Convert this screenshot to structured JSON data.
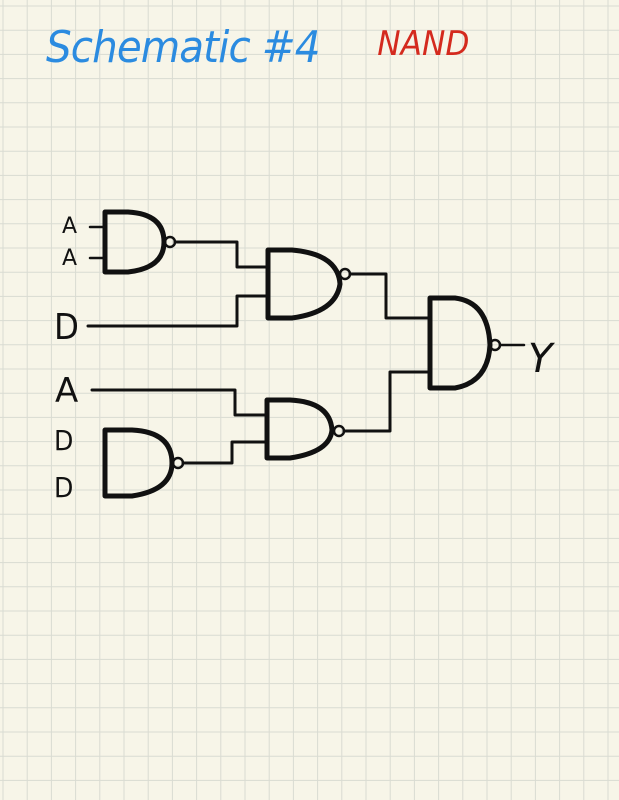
{
  "title": "Schematic #4",
  "subtitle": "NAND",
  "title_color": "#2b8be0",
  "subtitle_color": "#d42a1e",
  "ink_color": "#111111",
  "grid_color": "#d9dbd2",
  "paper_color": "#f7f5e8",
  "input_labels": [
    "A",
    "A",
    "D",
    "A",
    "D",
    "D"
  ],
  "output_label": "Y",
  "gate_type": "NAND",
  "gates": [
    {
      "id": "G1",
      "inputs": [
        "A",
        "A"
      ],
      "output": "to G2"
    },
    {
      "id": "G2",
      "inputs": [
        "G1",
        "D"
      ],
      "output": "to G5"
    },
    {
      "id": "G3",
      "inputs": [
        "D",
        "D"
      ],
      "output": "to G4"
    },
    {
      "id": "G4",
      "inputs": [
        "A",
        "G3"
      ],
      "output": "to G5"
    },
    {
      "id": "G5",
      "inputs": [
        "G2",
        "G4"
      ],
      "output": "Y"
    }
  ]
}
